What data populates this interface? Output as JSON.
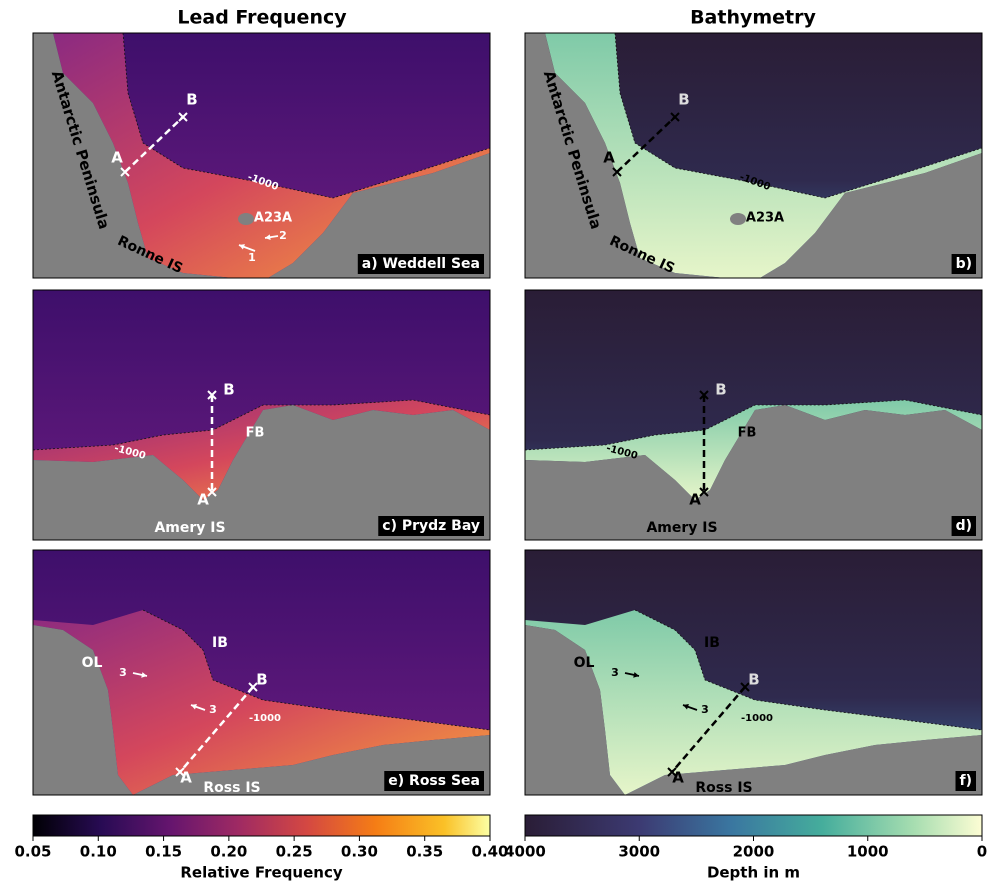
{
  "columns": [
    "Lead Frequency",
    "Bathymetry"
  ],
  "panels": [
    {
      "label": "a) Weddell Sea",
      "texts": [
        "Antarctic Peninsula",
        "Ronne IS",
        "A23A",
        "A",
        "B",
        "-1000",
        "1",
        "2"
      ]
    },
    {
      "label": "b)",
      "texts": [
        "Antarctic Peninsula",
        "Ronne IS",
        "A23A",
        "A",
        "B",
        "-1000"
      ]
    },
    {
      "label": "c) Prydz Bay",
      "texts": [
        "Amery IS",
        "FB",
        "A",
        "B",
        "-1000"
      ]
    },
    {
      "label": "d)",
      "texts": [
        "Amery IS",
        "FB",
        "A",
        "B",
        "-1000"
      ]
    },
    {
      "label": "e) Ross Sea",
      "texts": [
        "OL",
        "IB",
        "Ross IS",
        "A",
        "B",
        "-1000",
        "3",
        "3"
      ]
    },
    {
      "label": "f)",
      "texts": [
        "OL",
        "IB",
        "Ross IS",
        "A",
        "B",
        "-1000",
        "3",
        "3"
      ]
    }
  ],
  "colorbars": [
    {
      "label": "Relative Frequency",
      "lim": [
        0.05,
        0.4
      ],
      "ticks": [
        0.05,
        {
          "value": 0.1,
          "label": "0.10"
        },
        0.15,
        {
          "value": 0.2,
          "label": "0.20"
        },
        0.25,
        {
          "value": 0.3,
          "label": "0.30"
        },
        0.35,
        {
          "value": 0.4,
          "label": "0.40"
        }
      ]
    },
    {
      "label": "Depth in m",
      "lim": [
        4000,
        0
      ],
      "ticks": [
        4000,
        3000,
        2000,
        1000,
        0
      ]
    }
  ]
}
